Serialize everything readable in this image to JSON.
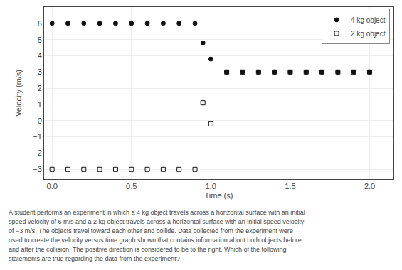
{
  "chart_data": {
    "type": "scatter",
    "xlabel": "Time (s)",
    "ylabel": "Velocity (m/s)",
    "xlim": [
      -0.05,
      2.15
    ],
    "ylim": [
      -3.6,
      7.0
    ],
    "xticks": [
      {
        "value": 0,
        "label": "0.0"
      },
      0.5,
      {
        "value": 1.0,
        "label": "1.0"
      },
      1.5,
      {
        "value": 2.0,
        "label": "2.0"
      }
    ],
    "yticks": [
      {
        "value": -3,
        "label": "−3"
      },
      {
        "value": -2,
        "label": "−2"
      },
      {
        "value": -1,
        "label": "−1"
      },
      0,
      1,
      2,
      3,
      4,
      5,
      6
    ],
    "grid": true,
    "legend": "upper right",
    "series": [
      {
        "name": "4 kg object",
        "color": "#111111",
        "marker": "circle",
        "x": [
          0.0,
          0.1,
          0.2,
          0.3,
          0.4,
          0.5,
          0.6,
          0.7,
          0.8,
          0.9,
          0.95,
          1.0,
          1.1,
          1.2,
          1.3,
          1.4,
          1.5,
          1.6,
          1.7,
          1.8,
          1.9,
          2.0
        ],
        "values": [
          6,
          6,
          6,
          6,
          6,
          6,
          6,
          6,
          6,
          6,
          4.8,
          3.8,
          3,
          3,
          3,
          3,
          3,
          3,
          3,
          3,
          3,
          3
        ]
      },
      {
        "name": "2 kg object",
        "color": "#111111",
        "marker": "square-open",
        "x": [
          0.0,
          0.1,
          0.2,
          0.3,
          0.4,
          0.5,
          0.6,
          0.7,
          0.8,
          0.9,
          0.95,
          1.0,
          1.1,
          1.2,
          1.3,
          1.4,
          1.5,
          1.6,
          1.7,
          1.8,
          1.9,
          2.0
        ],
        "values": [
          -3,
          -3,
          -3,
          -3,
          -3,
          -3,
          -3,
          -3,
          -3,
          -3,
          1.1,
          -0.2,
          3,
          3,
          3,
          3,
          3,
          3,
          3,
          3,
          3,
          3
        ]
      }
    ],
    "annotations": [
      "A student performs an experiment in which a 4 kg object travels across a horizontal surface with an initial",
      "speed velocity of 6 m/s and a 2 kg object travels across a horizontal surface with an initial speed velocity",
      "of −3 m/s. The objects travel toward each other and collide. Data collected from the experiment were",
      "used to create the velocity versus time graph shown that contains information about both objects before",
      "and after the collision. The positive direction is considered to be to the right. Which of the following",
      "statements are true regarding the data from the experiment?"
    ]
  }
}
